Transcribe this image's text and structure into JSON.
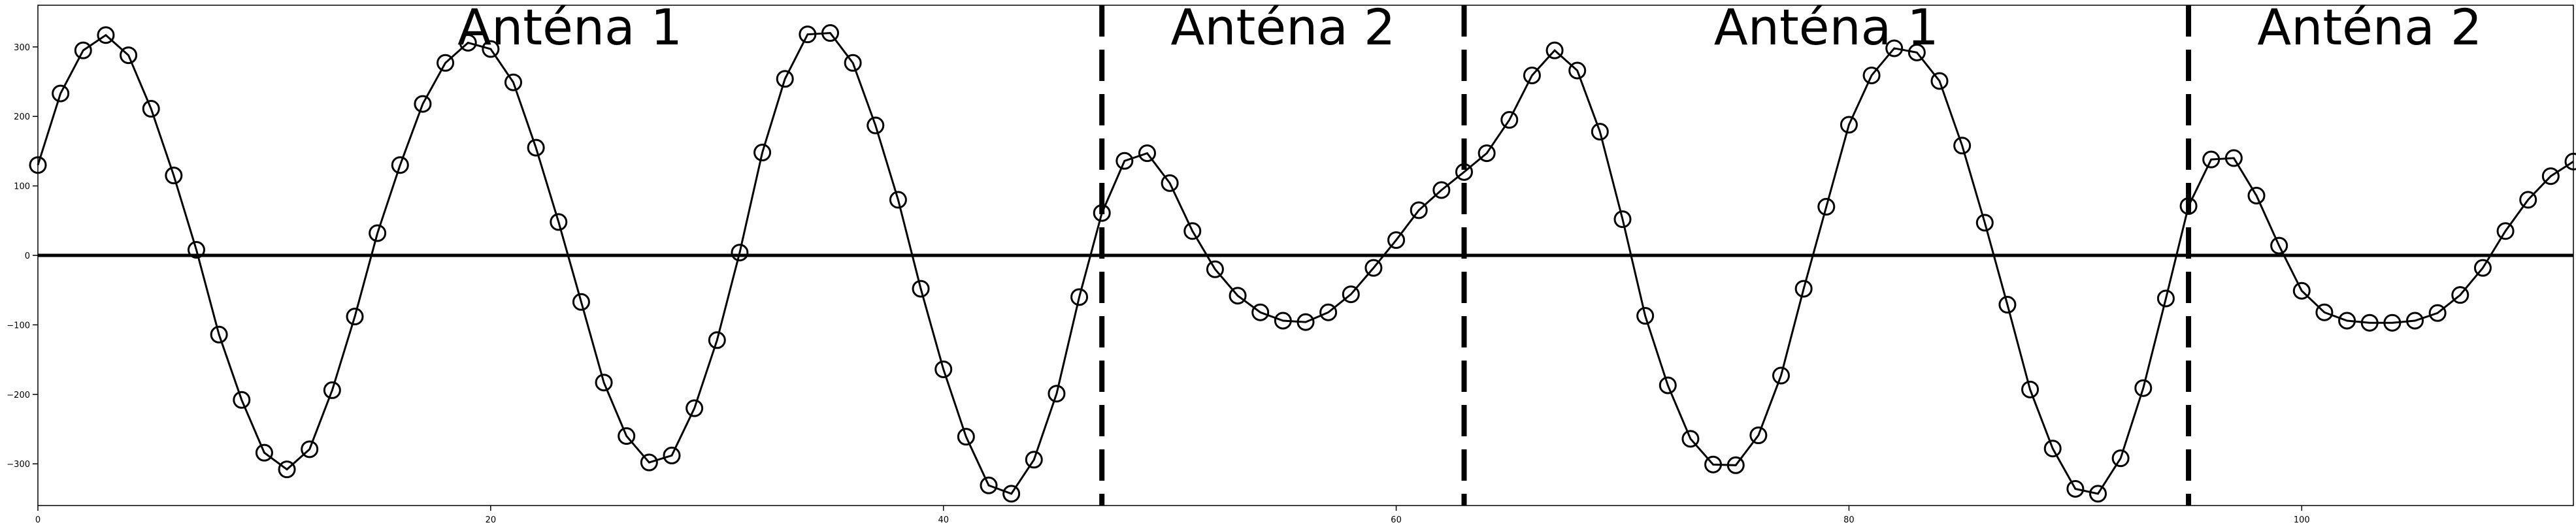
{
  "chart_data": {
    "type": "line",
    "title": "",
    "xlabel": "",
    "ylabel": "",
    "xlim": [
      0,
      112
    ],
    "ylim": [
      -360,
      360
    ],
    "grid": false,
    "x_ticks": [
      0,
      20,
      40,
      60,
      80,
      100
    ],
    "y_ticks": [
      -300,
      -200,
      -100,
      0,
      100,
      200,
      300
    ],
    "x_tick_labels": [
      "0",
      "20",
      "40",
      "60",
      "80",
      "100"
    ],
    "y_tick_labels": [
      "−300",
      "−200",
      "−100",
      "0",
      "100",
      "200",
      "300"
    ],
    "horizontal_line": 0,
    "dividers": [
      47,
      63,
      95
    ],
    "annotations": [
      {
        "text": "Anténa 1",
        "x": 23.5
      },
      {
        "text": "Anténa 2",
        "x": 55
      },
      {
        "text": "Anténa 1",
        "x": 79
      },
      {
        "text": "Anténa 2",
        "x": 103
      }
    ],
    "marker": "open-circle",
    "line_color": "#000000",
    "series": [
      {
        "x": [
          0,
          1,
          2,
          3,
          4,
          5,
          6,
          7,
          8,
          9,
          10,
          11,
          12,
          13,
          14,
          15,
          16,
          17,
          18,
          19,
          20,
          21,
          22,
          23,
          24,
          25,
          26,
          27,
          28,
          29,
          30,
          31,
          32,
          33,
          34,
          35,
          36,
          37,
          38,
          39,
          40,
          41,
          42,
          43,
          44,
          45,
          46,
          47,
          48,
          49,
          50,
          51,
          52,
          53,
          54,
          55,
          56,
          57,
          58,
          59,
          60,
          61,
          62,
          63,
          64,
          65,
          66,
          67,
          68,
          69,
          70,
          71,
          72,
          73,
          74,
          75,
          76,
          77,
          78,
          79,
          80,
          81,
          82,
          83,
          84,
          85,
          86,
          87,
          88,
          89,
          90,
          91,
          92,
          93,
          94,
          95,
          96,
          97,
          98,
          99,
          100,
          101,
          102,
          103,
          104,
          105,
          106,
          107,
          108,
          109,
          110,
          111,
          112
        ],
        "values": [
          130,
          233,
          295,
          317,
          288,
          211,
          115,
          8,
          -114,
          -208,
          -284,
          -308,
          -279,
          -194,
          -88,
          32,
          130,
          218,
          277,
          306,
          297,
          249,
          155,
          48,
          -67,
          -183,
          -260,
          -298,
          -288,
          -220,
          -122,
          4,
          148,
          254,
          318,
          320,
          277,
          187,
          80,
          -48,
          -164,
          -261,
          -331,
          -343,
          -294,
          -199,
          -60,
          61,
          136,
          147,
          104,
          35,
          -20,
          -58,
          -82,
          -94,
          -96,
          -82,
          -56,
          -18,
          22,
          65,
          94,
          120,
          147,
          195,
          259,
          295,
          266,
          178,
          52,
          -87,
          -187,
          -264,
          -301,
          -302,
          -259,
          -173,
          -48,
          70,
          188,
          259,
          298,
          292,
          251,
          158,
          47,
          -71,
          -193,
          -278,
          -336,
          -343,
          -292,
          -191,
          -62,
          71,
          138,
          140,
          86,
          14,
          -51,
          -82,
          -94,
          -97,
          -97,
          -94,
          -83,
          -57,
          -18,
          35,
          80,
          114,
          135
        ]
      }
    ]
  }
}
